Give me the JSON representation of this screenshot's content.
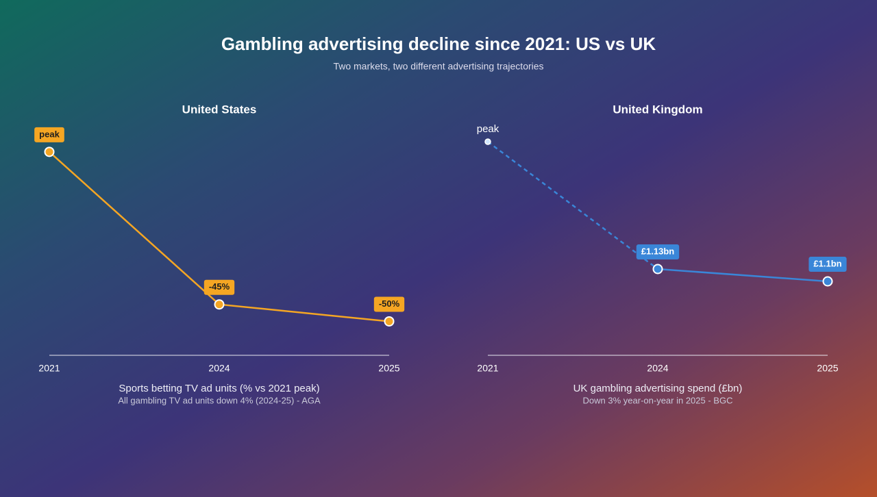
{
  "header": {
    "title": "Gambling advertising decline since 2021: US vs UK",
    "subtitle": "Two markets, two different advertising trajectories"
  },
  "chart_data": [
    {
      "type": "line",
      "title": "United States",
      "xlabel": "Sports betting TV ad units (% vs 2021 peak)",
      "note": "All gambling TV ad units down 4% (2024-25) - AGA",
      "categories": [
        "2021",
        "2024",
        "2025"
      ],
      "values": [
        0,
        -45,
        -50
      ],
      "value_labels": [
        "peak",
        "-45%",
        "-50%"
      ],
      "color": "#f5a623",
      "label_text_color": "#1e1e1e",
      "ylim": [
        -60,
        3
      ],
      "dash_first_segment": false
    },
    {
      "type": "line",
      "title": "United Kingdom",
      "xlabel": "UK gambling advertising spend (£bn)",
      "note": "Down 3% year-on-year in 2025 - BGC",
      "categories": [
        "2021",
        "2024",
        "2025"
      ],
      "values": [
        1.44,
        1.13,
        1.1
      ],
      "value_labels": [
        "peak",
        "£1.13bn",
        "£1.1bn"
      ],
      "color": "#3a86d8",
      "label_text_color": "#ffffff",
      "ylim": [
        0.92,
        1.44
      ],
      "dash_first_segment": true
    }
  ]
}
